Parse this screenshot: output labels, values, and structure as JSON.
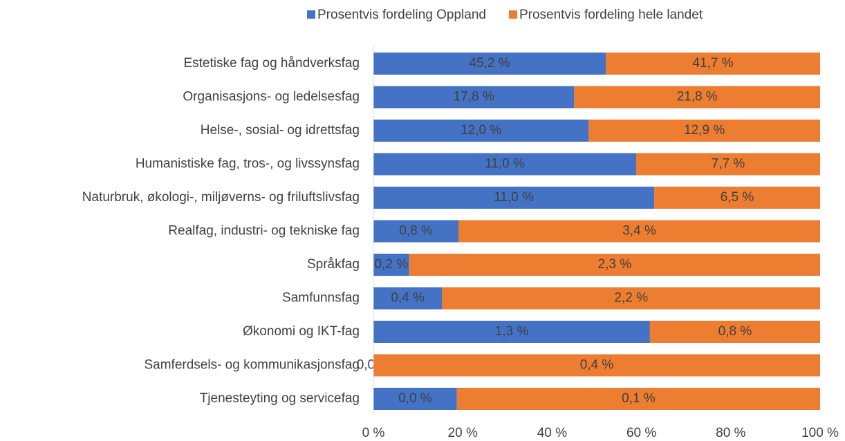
{
  "chart_data": {
    "type": "bar",
    "orientation": "horizontal",
    "stacking": "percent",
    "categories": [
      "Estetiske fag og håndverksfag",
      "Organisasjons- og ledelsesfag",
      "Helse-, sosial- og idrettsfag",
      "Humanistiske fag, tros-, og livssynsfag",
      "Naturbruk, økologi-, miljøverns- og friluftslivsfag",
      "Realfag, industri- og tekniske fag",
      "Språkfag",
      "Samfunnsfag",
      "Økonomi og IKT-fag",
      "Samferdsels- og kommunikasjonsfag",
      "Tjenesteyting og servicefag"
    ],
    "series": [
      {
        "name": "Prosentvis fordeling Oppland",
        "color": "#4472c4",
        "values": [
          45.2,
          17.8,
          12.0,
          11.0,
          11.0,
          0.8,
          0.2,
          0.4,
          1.3,
          0.0,
          0.023
        ],
        "value_labels": [
          "45,2 %",
          "17,8 %",
          "12,0 %",
          "11,0 %",
          "11,0 %",
          "0,8 %",
          "0,2 %",
          "0,4 %",
          "1,3 %",
          "0,0 %",
          "0,0 %"
        ]
      },
      {
        "name": "Prosentvis fordeling hele landet",
        "color": "#ed7d31",
        "values": [
          41.7,
          21.8,
          12.9,
          7.7,
          6.5,
          3.4,
          2.3,
          2.2,
          0.8,
          0.4,
          0.1
        ],
        "value_labels": [
          "41,7 %",
          "21,8 %",
          "12,9 %",
          "7,7 %",
          "6,5 %",
          "3,4 %",
          "2,3 %",
          "2,2 %",
          "0,8 %",
          "0,4 %",
          "0,1 %"
        ]
      }
    ],
    "xlim": [
      0,
      100
    ],
    "xticks": [
      {
        "value": 0,
        "label": "0 %"
      },
      {
        "value": 20,
        "label": "20 %"
      },
      {
        "value": 40,
        "label": "40 %"
      },
      {
        "value": 60,
        "label": "60 %"
      },
      {
        "value": 80,
        "label": "80 %"
      },
      {
        "value": 100,
        "label": "100 %"
      }
    ],
    "legend": "top"
  }
}
